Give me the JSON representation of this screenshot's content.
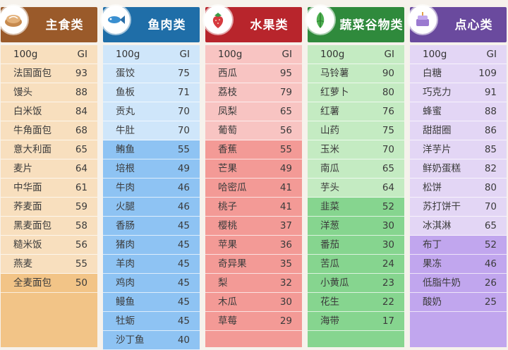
{
  "header_unit": "100g",
  "header_gi": "GI",
  "columns": [
    {
      "title": "主食类",
      "icon": "bread-icon",
      "head_color": "#9a5a2a",
      "light_color": "#f8dfbe",
      "dark_color": "#f2c487",
      "dark_from": 11,
      "items": [
        {
          "name": "法国面包",
          "gi": "93"
        },
        {
          "name": "馒头",
          "gi": "88"
        },
        {
          "name": "白米饭",
          "gi": "84"
        },
        {
          "name": "牛角面包",
          "gi": "68"
        },
        {
          "name": "意大利面",
          "gi": "65"
        },
        {
          "name": "麦片",
          "gi": "64"
        },
        {
          "name": "中华面",
          "gi": "61"
        },
        {
          "name": "荞麦面",
          "gi": "59"
        },
        {
          "name": "黑麦面包",
          "gi": "58"
        },
        {
          "name": "糙米饭",
          "gi": "56"
        },
        {
          "name": "燕麦",
          "gi": "55"
        },
        {
          "name": "全麦面包",
          "gi": "50"
        }
      ]
    },
    {
      "title": "鱼肉类",
      "icon": "fish-icon",
      "head_color": "#1f6ea8",
      "light_color": "#cfe6fa",
      "dark_color": "#8ec3f3",
      "dark_from": 4,
      "items": [
        {
          "name": "蛋饺",
          "gi": "75"
        },
        {
          "name": "鱼板",
          "gi": "71"
        },
        {
          "name": "贡丸",
          "gi": "70"
        },
        {
          "name": "牛肚",
          "gi": "70"
        },
        {
          "name": "鲔鱼",
          "gi": "55"
        },
        {
          "name": "培根",
          "gi": "49"
        },
        {
          "name": "牛肉",
          "gi": "46"
        },
        {
          "name": "火腿",
          "gi": "46"
        },
        {
          "name": "香肠",
          "gi": "45"
        },
        {
          "name": "猪肉",
          "gi": "45"
        },
        {
          "name": "羊肉",
          "gi": "45"
        },
        {
          "name": "鸡肉",
          "gi": "45"
        },
        {
          "name": "鳗鱼",
          "gi": "45"
        },
        {
          "name": "牡蛎",
          "gi": "45"
        },
        {
          "name": "沙丁鱼",
          "gi": "40"
        }
      ]
    },
    {
      "title": "水果类",
      "icon": "strawberry-icon",
      "head_color": "#b8252c",
      "light_color": "#f8c4c2",
      "dark_color": "#f39a96",
      "dark_from": 4,
      "items": [
        {
          "name": "西瓜",
          "gi": "95"
        },
        {
          "name": "荔枝",
          "gi": "79"
        },
        {
          "name": "凤梨",
          "gi": "65"
        },
        {
          "name": "葡萄",
          "gi": "56"
        },
        {
          "name": "香蕉",
          "gi": "55"
        },
        {
          "name": "芒果",
          "gi": "49"
        },
        {
          "name": "哈密瓜",
          "gi": "41"
        },
        {
          "name": "桃子",
          "gi": "41"
        },
        {
          "name": "樱桃",
          "gi": "37"
        },
        {
          "name": "苹果",
          "gi": "36"
        },
        {
          "name": "奇异果",
          "gi": "35"
        },
        {
          "name": "梨",
          "gi": "32"
        },
        {
          "name": "木瓜",
          "gi": "30"
        },
        {
          "name": "草莓",
          "gi": "29"
        }
      ]
    },
    {
      "title": "蔬菜谷物类",
      "icon": "vegetable-icon",
      "head_color": "#2f8a3c",
      "light_color": "#c4ebc2",
      "dark_color": "#86d58f",
      "dark_from": 7,
      "items": [
        {
          "name": "马铃薯",
          "gi": "90"
        },
        {
          "name": "红萝卜",
          "gi": "80"
        },
        {
          "name": "红薯",
          "gi": "76"
        },
        {
          "name": "山药",
          "gi": "75"
        },
        {
          "name": "玉米",
          "gi": "70"
        },
        {
          "name": "南瓜",
          "gi": "65"
        },
        {
          "name": "芋头",
          "gi": "64"
        },
        {
          "name": "韭菜",
          "gi": "52"
        },
        {
          "name": "洋葱",
          "gi": "30"
        },
        {
          "name": "番茄",
          "gi": "30"
        },
        {
          "name": "苦瓜",
          "gi": "24"
        },
        {
          "name": "小黄瓜",
          "gi": "23"
        },
        {
          "name": "花生",
          "gi": "22"
        },
        {
          "name": "海带",
          "gi": "17"
        }
      ]
    },
    {
      "title": "点心类",
      "icon": "cake-icon",
      "head_color": "#6a4a9e",
      "light_color": "#e3d6f5",
      "dark_color": "#c1a6ee",
      "dark_from": 9,
      "items": [
        {
          "name": "白糖",
          "gi": "109"
        },
        {
          "name": "巧克力",
          "gi": "91"
        },
        {
          "name": "蜂蜜",
          "gi": "88"
        },
        {
          "name": "甜甜圈",
          "gi": "86"
        },
        {
          "name": "洋芋片",
          "gi": "85"
        },
        {
          "name": "鲜奶蛋糕",
          "gi": "82"
        },
        {
          "name": "松饼",
          "gi": "80"
        },
        {
          "name": "苏打饼干",
          "gi": "70"
        },
        {
          "name": "冰淇淋",
          "gi": "65"
        },
        {
          "name": "布丁",
          "gi": "52"
        },
        {
          "name": "果冻",
          "gi": "46"
        },
        {
          "name": "低脂牛奶",
          "gi": "26"
        },
        {
          "name": "酸奶",
          "gi": "25"
        }
      ]
    }
  ]
}
